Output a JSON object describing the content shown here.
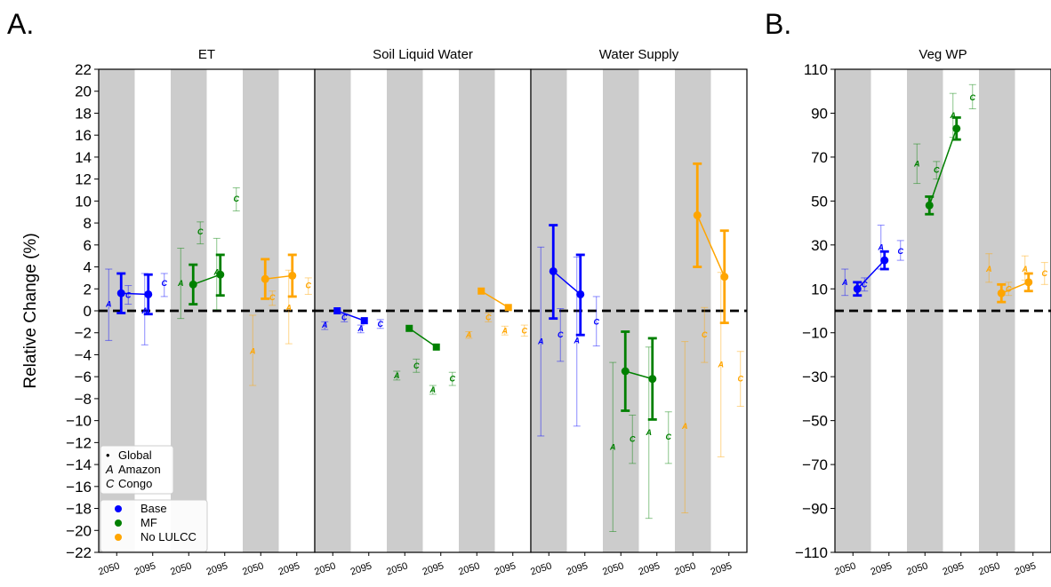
{
  "figure_labels": {
    "left": "A.",
    "right": "B."
  },
  "y_label": "Relative Change (%)",
  "colors": {
    "Base": "#0000ff",
    "MF": "#008000",
    "No LULCC": "#ffa500",
    "band": "#cccccc"
  },
  "x_tick_labels": [
    "2050",
    "2095",
    "2050",
    "2095",
    "2050",
    "2095"
  ],
  "legend": {
    "markers": [
      {
        "symbol": "•",
        "label": "Global"
      },
      {
        "symbol": "A",
        "label": "Amazon"
      },
      {
        "symbol": "C",
        "label": "Congo"
      }
    ],
    "series": [
      "Base",
      "MF",
      "No LULCC"
    ]
  },
  "chart_data": [
    {
      "type": "scatter",
      "title": "ET",
      "ylim": [
        -22,
        22
      ],
      "yticks": [
        22,
        20,
        18,
        16,
        14,
        12,
        10,
        8,
        6,
        4,
        2,
        0,
        -2,
        -4,
        -6,
        -8,
        -10,
        -12,
        -14,
        -16,
        -18,
        -20,
        -22
      ],
      "categories": [
        "2050",
        "2095",
        "2050",
        "2095",
        "2050",
        "2095"
      ],
      "series": [
        {
          "name": "Base",
          "connect": true,
          "global_marker": "o",
          "global": [
            [
              1.6,
              -0.2,
              3.4
            ],
            [
              1.5,
              -0.3,
              3.3
            ]
          ],
          "amazon": [
            [
              0.6,
              -2.7,
              3.8
            ],
            [
              0.0,
              -3.1,
              3.4
            ]
          ],
          "congo": [
            [
              1.4,
              0.6,
              2.3
            ],
            [
              2.5,
              1.3,
              3.4
            ]
          ]
        },
        {
          "name": "MF",
          "connect": true,
          "global_marker": "o",
          "global": [
            [
              2.4,
              0.6,
              4.2
            ],
            [
              3.3,
              1.4,
              5.1
            ]
          ],
          "amazon": [
            [
              2.5,
              -0.7,
              5.7
            ],
            [
              3.5,
              0.1,
              6.6
            ]
          ],
          "congo": [
            [
              7.2,
              6.1,
              8.1
            ],
            [
              10.2,
              9.1,
              11.2
            ]
          ]
        },
        {
          "name": "No LULCC",
          "connect": true,
          "global_marker": "o",
          "global": [
            [
              2.9,
              1.1,
              4.7
            ],
            [
              3.2,
              1.3,
              5.1
            ]
          ],
          "amazon": [
            [
              -3.7,
              -6.8,
              -0.4
            ],
            [
              0.3,
              -3.0,
              3.7
            ]
          ],
          "congo": [
            [
              1.2,
              0.5,
              1.8
            ],
            [
              2.3,
              1.5,
              3.0
            ]
          ]
        }
      ]
    },
    {
      "type": "scatter",
      "title": "Soil Liquid Water",
      "ylim": [
        -22,
        22
      ],
      "categories": [
        "2050",
        "2095",
        "2050",
        "2095",
        "2050",
        "2095"
      ],
      "series": [
        {
          "name": "Base",
          "connect": true,
          "global_marker": "s",
          "global": [
            [
              0.0,
              0.0,
              0.0
            ],
            [
              -0.9,
              -0.9,
              -0.9
            ]
          ],
          "amazon": [
            [
              -1.3,
              -1.7,
              -1.0
            ],
            [
              -1.6,
              -2.0,
              -1.3
            ]
          ],
          "congo": [
            [
              -0.6,
              -1.0,
              -0.3
            ],
            [
              -1.2,
              -1.6,
              -0.8
            ]
          ]
        },
        {
          "name": "MF",
          "connect": true,
          "global_marker": "s",
          "global": [
            [
              -1.6,
              -1.6,
              -1.6
            ],
            [
              -3.3,
              -3.3,
              -3.3
            ]
          ],
          "amazon": [
            [
              -5.9,
              -6.3,
              -5.5
            ],
            [
              -7.2,
              -7.6,
              -6.8
            ]
          ],
          "congo": [
            [
              -5.0,
              -5.6,
              -4.4
            ],
            [
              -6.2,
              -6.8,
              -5.6
            ]
          ]
        },
        {
          "name": "No LULCC",
          "connect": true,
          "global_marker": "s",
          "global": [
            [
              1.8,
              1.8,
              1.8
            ],
            [
              0.3,
              0.3,
              0.3
            ]
          ],
          "amazon": [
            [
              -2.2,
              -2.5,
              -1.9
            ],
            [
              -1.8,
              -2.2,
              -1.4
            ]
          ],
          "congo": [
            [
              -0.6,
              -1.0,
              -0.2
            ],
            [
              -1.8,
              -2.3,
              -1.3
            ]
          ]
        }
      ]
    },
    {
      "type": "scatter",
      "title": "Water Supply",
      "ylim": [
        -22,
        22
      ],
      "categories": [
        "2050",
        "2095",
        "2050",
        "2095",
        "2050",
        "2095"
      ],
      "series": [
        {
          "name": "Base",
          "connect": true,
          "global_marker": "o",
          "global": [
            [
              3.6,
              -0.7,
              7.8
            ],
            [
              1.5,
              -2.2,
              5.1
            ]
          ],
          "amazon": [
            [
              -2.8,
              -11.4,
              5.8
            ],
            [
              -2.7,
              -10.5,
              4.9
            ]
          ],
          "congo": [
            [
              -2.2,
              -4.6,
              0.2
            ],
            [
              -1.0,
              -3.2,
              1.3
            ]
          ]
        },
        {
          "name": "MF",
          "connect": true,
          "global_marker": "o",
          "global": [
            [
              -5.5,
              -9.1,
              -1.9
            ],
            [
              -6.2,
              -9.9,
              -2.5
            ]
          ],
          "amazon": [
            [
              -12.4,
              -20.1,
              -4.7
            ],
            [
              -11.1,
              -18.9,
              -3.3
            ]
          ],
          "congo": [
            [
              -11.7,
              -13.9,
              -9.5
            ],
            [
              -11.5,
              -13.9,
              -9.2
            ]
          ]
        },
        {
          "name": "No LULCC",
          "connect": true,
          "global_marker": "o",
          "global": [
            [
              8.7,
              4.0,
              13.4
            ],
            [
              3.1,
              -1.1,
              7.3
            ]
          ],
          "amazon": [
            [
              -10.5,
              -18.4,
              -2.8
            ],
            [
              -4.9,
              -13.3,
              3.5
            ]
          ],
          "congo": [
            [
              -2.2,
              -4.7,
              0.3
            ],
            [
              -6.2,
              -8.7,
              -3.7
            ]
          ]
        }
      ]
    },
    {
      "type": "scatter",
      "title": "Veg WP",
      "ylim": [
        -110,
        110
      ],
      "yticks": [
        110,
        90,
        70,
        50,
        30,
        10,
        -10,
        -30,
        -50,
        -70,
        -90,
        -110
      ],
      "categories": [
        "2050",
        "2095",
        "2050",
        "2095",
        "2050",
        "2095"
      ],
      "series": [
        {
          "name": "Base",
          "connect": true,
          "global_marker": "o",
          "global": [
            [
              10,
              7,
              13
            ],
            [
              23,
              19,
              27
            ]
          ],
          "amazon": [
            [
              13,
              7,
              19
            ],
            [
              29,
              19,
              39
            ]
          ],
          "congo": [
            [
              12,
              9,
              15
            ],
            [
              27,
              23,
              32
            ]
          ]
        },
        {
          "name": "MF",
          "connect": true,
          "global_marker": "o",
          "global": [
            [
              48,
              44,
              52
            ],
            [
              83,
              78,
              88
            ]
          ],
          "amazon": [
            [
              67,
              58,
              76
            ],
            [
              89,
              79,
              99
            ]
          ],
          "congo": [
            [
              64,
              60,
              68
            ],
            [
              97,
              92,
              103
            ]
          ]
        },
        {
          "name": "No LULCC",
          "connect": true,
          "global_marker": "o",
          "global": [
            [
              8,
              4,
              12
            ],
            [
              13,
              9,
              17
            ]
          ],
          "amazon": [
            [
              19,
              13,
              26
            ],
            [
              19,
              14,
              25
            ]
          ],
          "congo": [
            [
              10,
              7,
              13
            ],
            [
              17,
              12,
              22
            ]
          ]
        }
      ]
    }
  ]
}
